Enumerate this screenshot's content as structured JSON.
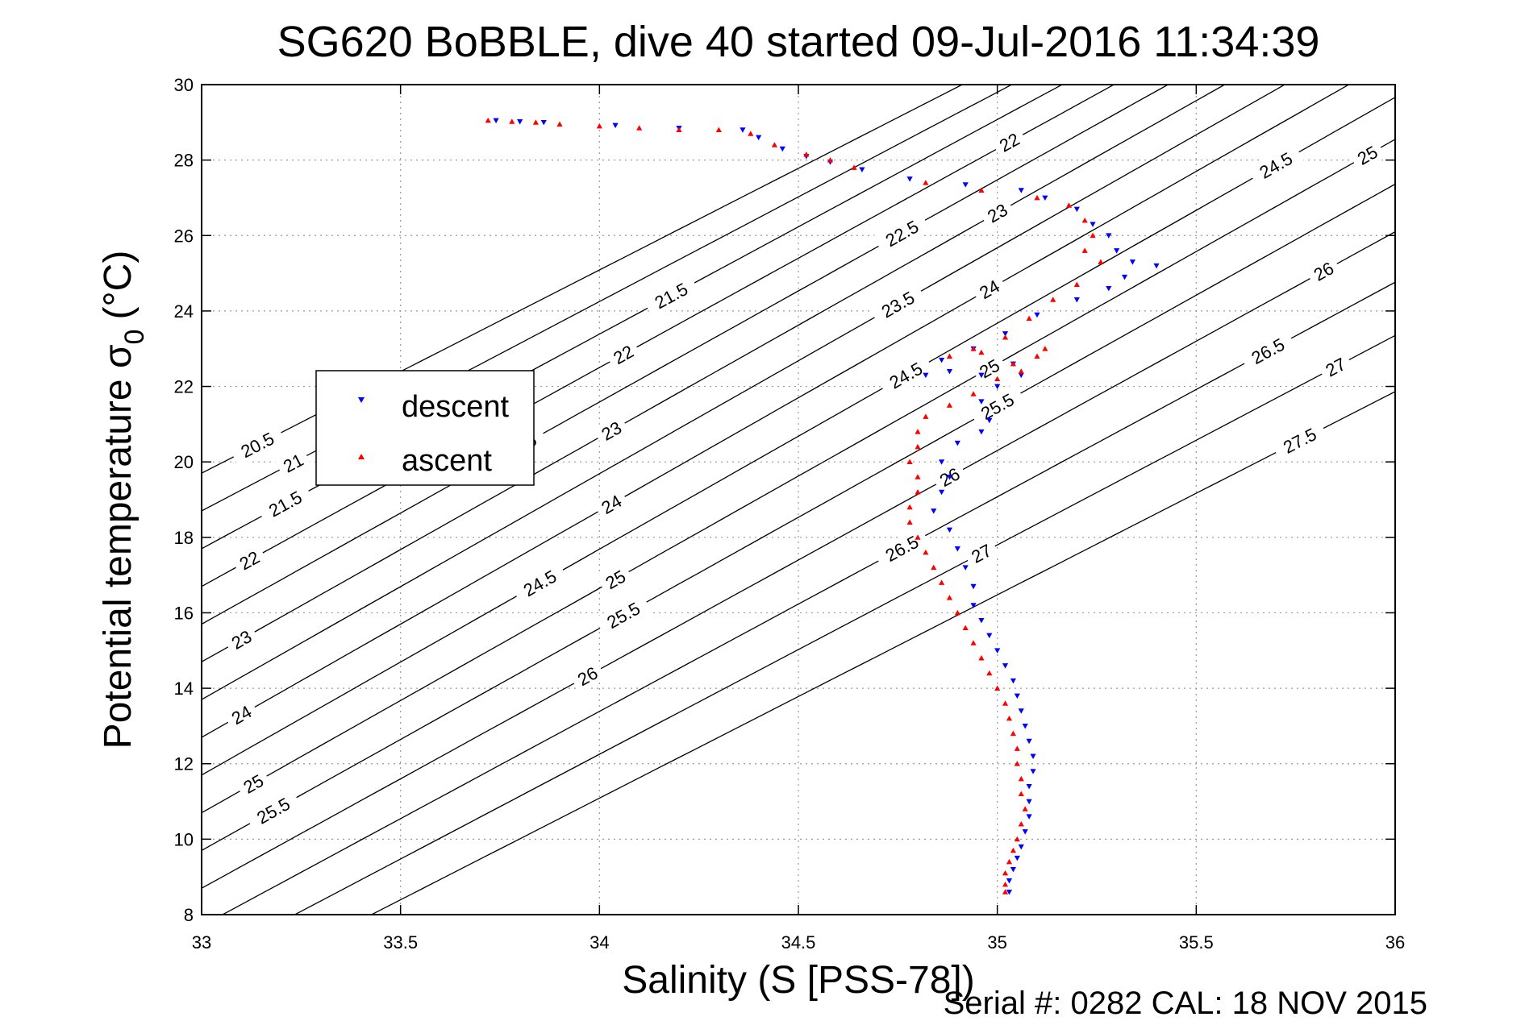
{
  "chart_data": {
    "type": "scatter",
    "title": "SG620 BoBBLE, dive 40 started 09-Jul-2016 11:34:39",
    "xlabel": "Salinity (S [PSS-78])",
    "ylabel_main": "Potential temperature σ",
    "ylabel_sub": "0",
    "ylabel_unit": "(°C)",
    "xlim": [
      33,
      36
    ],
    "ylim": [
      8,
      30
    ],
    "x_ticks": [
      33,
      33.5,
      34,
      34.5,
      35,
      35.5,
      36
    ],
    "x_tick_labels": [
      "33",
      "33.5",
      "34",
      "34.5",
      "35",
      "35.5",
      "36"
    ],
    "y_ticks": [
      8,
      10,
      12,
      14,
      16,
      18,
      20,
      22,
      24,
      26,
      28,
      30
    ],
    "y_tick_labels": [
      "8",
      "10",
      "12",
      "14",
      "16",
      "18",
      "20",
      "22",
      "24",
      "26",
      "28",
      "30"
    ],
    "grid": true,
    "legend_position": "upper-left",
    "footer": "Serial #: 0282  CAL: 18 NOV 2015",
    "colors": {
      "descent": "#0000ff",
      "ascent": "#ff0000",
      "contour": "#000000",
      "grid": "#999999"
    },
    "series": [
      {
        "name": "descent",
        "marker": "triangle-down",
        "points": [
          [
            33.74,
            29.05
          ],
          [
            33.8,
            29.02
          ],
          [
            33.86,
            29.0
          ],
          [
            34.04,
            28.92
          ],
          [
            34.2,
            28.85
          ],
          [
            34.36,
            28.8
          ],
          [
            34.4,
            28.6
          ],
          [
            34.46,
            28.3
          ],
          [
            34.52,
            28.1
          ],
          [
            34.58,
            27.95
          ],
          [
            34.66,
            27.75
          ],
          [
            34.78,
            27.5
          ],
          [
            34.92,
            27.35
          ],
          [
            35.06,
            27.2
          ],
          [
            35.12,
            27.0
          ],
          [
            35.2,
            26.7
          ],
          [
            35.24,
            26.3
          ],
          [
            35.28,
            26.0
          ],
          [
            35.3,
            25.6
          ],
          [
            35.34,
            25.3
          ],
          [
            35.4,
            25.2
          ],
          [
            35.32,
            24.9
          ],
          [
            35.28,
            24.6
          ],
          [
            35.2,
            24.3
          ],
          [
            35.1,
            23.9
          ],
          [
            35.02,
            23.4
          ],
          [
            34.94,
            23.0
          ],
          [
            34.86,
            22.7
          ],
          [
            34.82,
            22.3
          ],
          [
            34.88,
            22.4
          ],
          [
            34.96,
            22.3
          ],
          [
            35.04,
            22.6
          ],
          [
            35.06,
            22.3
          ],
          [
            35.0,
            22.0
          ],
          [
            34.96,
            21.6
          ],
          [
            34.98,
            21.1
          ],
          [
            34.96,
            20.8
          ],
          [
            34.9,
            20.5
          ],
          [
            34.86,
            20.0
          ],
          [
            34.88,
            19.6
          ],
          [
            34.86,
            19.2
          ],
          [
            34.84,
            18.7
          ],
          [
            34.88,
            18.2
          ],
          [
            34.9,
            17.7
          ],
          [
            34.92,
            17.2
          ],
          [
            34.94,
            16.7
          ],
          [
            34.94,
            16.2
          ],
          [
            34.96,
            15.8
          ],
          [
            34.98,
            15.4
          ],
          [
            35.0,
            15.0
          ],
          [
            35.02,
            14.6
          ],
          [
            35.04,
            14.2
          ],
          [
            35.05,
            13.8
          ],
          [
            35.06,
            13.4
          ],
          [
            35.07,
            13.0
          ],
          [
            35.08,
            12.6
          ],
          [
            35.09,
            12.2
          ],
          [
            35.09,
            11.8
          ],
          [
            35.08,
            11.4
          ],
          [
            35.08,
            11.0
          ],
          [
            35.08,
            10.6
          ],
          [
            35.07,
            10.2
          ],
          [
            35.06,
            9.8
          ],
          [
            35.05,
            9.5
          ],
          [
            35.04,
            9.2
          ],
          [
            35.03,
            8.9
          ],
          [
            35.03,
            8.6
          ]
        ]
      },
      {
        "name": "ascent",
        "marker": "triangle-up",
        "points": [
          [
            33.72,
            29.05
          ],
          [
            33.78,
            29.02
          ],
          [
            33.84,
            29.0
          ],
          [
            33.9,
            28.95
          ],
          [
            34.0,
            28.9
          ],
          [
            34.1,
            28.85
          ],
          [
            34.2,
            28.8
          ],
          [
            34.3,
            28.8
          ],
          [
            34.38,
            28.7
          ],
          [
            34.44,
            28.4
          ],
          [
            34.52,
            28.15
          ],
          [
            34.58,
            28.0
          ],
          [
            34.64,
            27.8
          ],
          [
            34.82,
            27.4
          ],
          [
            34.96,
            27.2
          ],
          [
            35.1,
            27.0
          ],
          [
            35.18,
            26.8
          ],
          [
            35.22,
            26.4
          ],
          [
            35.24,
            26.0
          ],
          [
            35.22,
            25.6
          ],
          [
            35.26,
            25.3
          ],
          [
            35.2,
            24.7
          ],
          [
            35.14,
            24.3
          ],
          [
            35.08,
            23.8
          ],
          [
            35.02,
            23.3
          ],
          [
            34.94,
            23.0
          ],
          [
            34.88,
            22.8
          ],
          [
            34.96,
            22.9
          ],
          [
            35.04,
            22.6
          ],
          [
            35.1,
            22.8
          ],
          [
            35.12,
            23.0
          ],
          [
            35.06,
            22.4
          ],
          [
            35.0,
            22.2
          ],
          [
            34.94,
            21.8
          ],
          [
            34.88,
            21.5
          ],
          [
            34.82,
            21.2
          ],
          [
            34.8,
            20.8
          ],
          [
            34.8,
            20.4
          ],
          [
            34.78,
            20.0
          ],
          [
            34.8,
            19.6
          ],
          [
            34.8,
            19.2
          ],
          [
            34.78,
            18.8
          ],
          [
            34.78,
            18.4
          ],
          [
            34.8,
            18.0
          ],
          [
            34.82,
            17.6
          ],
          [
            34.84,
            17.2
          ],
          [
            34.86,
            16.8
          ],
          [
            34.88,
            16.4
          ],
          [
            34.9,
            16.0
          ],
          [
            34.92,
            15.6
          ],
          [
            34.94,
            15.2
          ],
          [
            34.96,
            14.8
          ],
          [
            34.98,
            14.4
          ],
          [
            35.0,
            14.0
          ],
          [
            35.02,
            13.6
          ],
          [
            35.03,
            13.2
          ],
          [
            35.04,
            12.8
          ],
          [
            35.05,
            12.4
          ],
          [
            35.05,
            12.0
          ],
          [
            35.06,
            11.6
          ],
          [
            35.06,
            11.2
          ],
          [
            35.07,
            10.8
          ],
          [
            35.06,
            10.4
          ],
          [
            35.05,
            10.0
          ],
          [
            35.04,
            9.7
          ],
          [
            35.03,
            9.4
          ],
          [
            35.02,
            9.1
          ],
          [
            35.02,
            8.8
          ],
          [
            35.02,
            8.6
          ]
        ]
      }
    ],
    "contours": [
      {
        "value": 20.5,
        "label": "20.5",
        "labels_at": [
          33.14
        ]
      },
      {
        "value": 21,
        "label": "21",
        "labels_at": [
          33.23
        ]
      },
      {
        "value": 21.5,
        "label": "21.5",
        "labels_at": [
          33.21,
          34.18
        ]
      },
      {
        "value": 22,
        "label": "22",
        "labels_at": [
          33.12,
          34.06,
          35.03
        ]
      },
      {
        "value": 22.5,
        "label": "22.5",
        "labels_at": [
          33.8,
          34.76,
          35.7
        ]
      },
      {
        "value": 23,
        "label": "23",
        "labels_at": [
          33.1,
          34.03,
          35.0
        ]
      },
      {
        "value": 23.5,
        "label": "23.5",
        "labels_at": [
          34.75,
          35.7
        ]
      },
      {
        "value": 24,
        "label": "24",
        "labels_at": [
          33.1,
          34.03,
          34.98,
          35.93
        ]
      },
      {
        "value": 24.5,
        "label": "24.5",
        "labels_at": [
          33.85,
          34.77,
          35.7
        ]
      },
      {
        "value": 25,
        "label": "25",
        "labels_at": [
          33.13,
          34.04,
          34.98,
          35.93
        ]
      },
      {
        "value": 25.5,
        "label": "25.5",
        "labels_at": [
          33.18,
          34.06,
          35.0
        ]
      },
      {
        "value": 26,
        "label": "26",
        "labels_at": [
          33.97,
          34.88,
          35.82
        ]
      },
      {
        "value": 26.5,
        "label": "26.5",
        "labels_at": [
          34.76,
          35.68
        ]
      },
      {
        "value": 27,
        "label": "27",
        "labels_at": [
          34.96,
          35.85
        ]
      },
      {
        "value": 27.5,
        "label": "27.5",
        "labels_at": [
          35.76
        ]
      }
    ]
  }
}
